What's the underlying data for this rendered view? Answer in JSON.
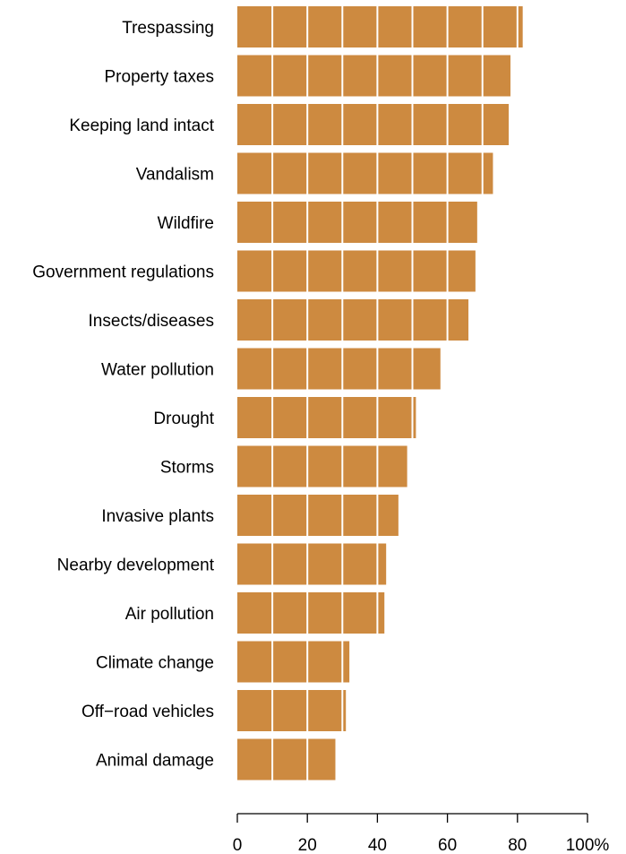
{
  "chart_data": {
    "type": "bar",
    "orientation": "horizontal",
    "title": "",
    "xlabel": "",
    "ylabel": "",
    "xlim": [
      0,
      100
    ],
    "categories": [
      "Trespassing",
      "Property taxes",
      "Keeping land intact",
      "Vandalism",
      "Wildfire",
      "Government regulations",
      "Insects/diseases",
      "Water pollution",
      "Drought",
      "Storms",
      "Invasive plants",
      "Nearby development",
      "Air pollution",
      "Climate change",
      "Off−road vehicles",
      "Animal damage"
    ],
    "values": [
      81.5,
      78,
      77.5,
      73,
      68.5,
      68,
      66,
      58,
      51,
      48.5,
      46,
      42.5,
      42,
      32,
      31,
      28
    ],
    "ticks": [
      0,
      20,
      40,
      60,
      80,
      100
    ],
    "tick_labels": [
      "0",
      "20",
      "40",
      "60",
      "80",
      "100%"
    ],
    "grid": "vertical white lines every 10",
    "grid_step": 10,
    "colors": {
      "bar": "#CD8A40",
      "gridline": "#ffffff",
      "axis": "#000000",
      "background": "#ffffff"
    }
  }
}
